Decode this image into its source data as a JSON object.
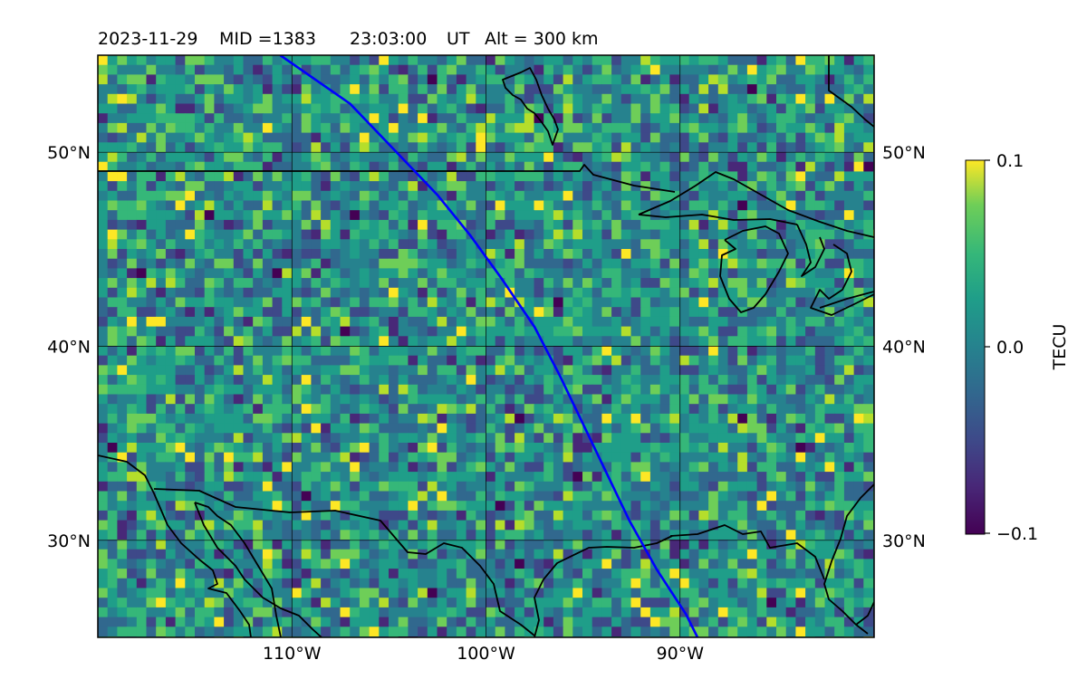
{
  "title": {
    "date": "2023-11-29",
    "mid": "MID =1383",
    "time": "23:03:00",
    "ut": "UT",
    "alt": "Alt = 300 km"
  },
  "map": {
    "lon_range": [
      -120,
      -80
    ],
    "lat_range": [
      25,
      55
    ],
    "lat_ticks": [
      {
        "lat": 50,
        "label": "50°N"
      },
      {
        "lat": 40,
        "label": "40°N"
      },
      {
        "lat": 30,
        "label": "30°N"
      }
    ],
    "lon_ticks": [
      {
        "lon": -110,
        "label": "110°W"
      },
      {
        "lon": -100,
        "label": "100°W"
      },
      {
        "lon": -90,
        "label": "90°W"
      }
    ],
    "gridlines": true,
    "track_color": "#0000ff",
    "track": [
      [
        -110.6,
        55
      ],
      [
        -107,
        52.5
      ],
      [
        -104.8,
        50.2
      ],
      [
        -102.5,
        47.8
      ],
      [
        -100.8,
        45.7
      ],
      [
        -99.2,
        43.5
      ],
      [
        -97.5,
        41.0
      ],
      [
        -96.2,
        38.5
      ],
      [
        -95.0,
        36.0
      ],
      [
        -93.8,
        33.5
      ],
      [
        -92.6,
        31.0
      ],
      [
        -91.2,
        28.5
      ],
      [
        -89.7,
        26.2
      ],
      [
        -89.1,
        25
      ]
    ]
  },
  "colorbar": {
    "label": "TECU",
    "ticks": [
      "0.1",
      "0.0",
      "−0.1"
    ],
    "colormap": "viridis",
    "range": [
      -0.1,
      0.1
    ]
  }
}
